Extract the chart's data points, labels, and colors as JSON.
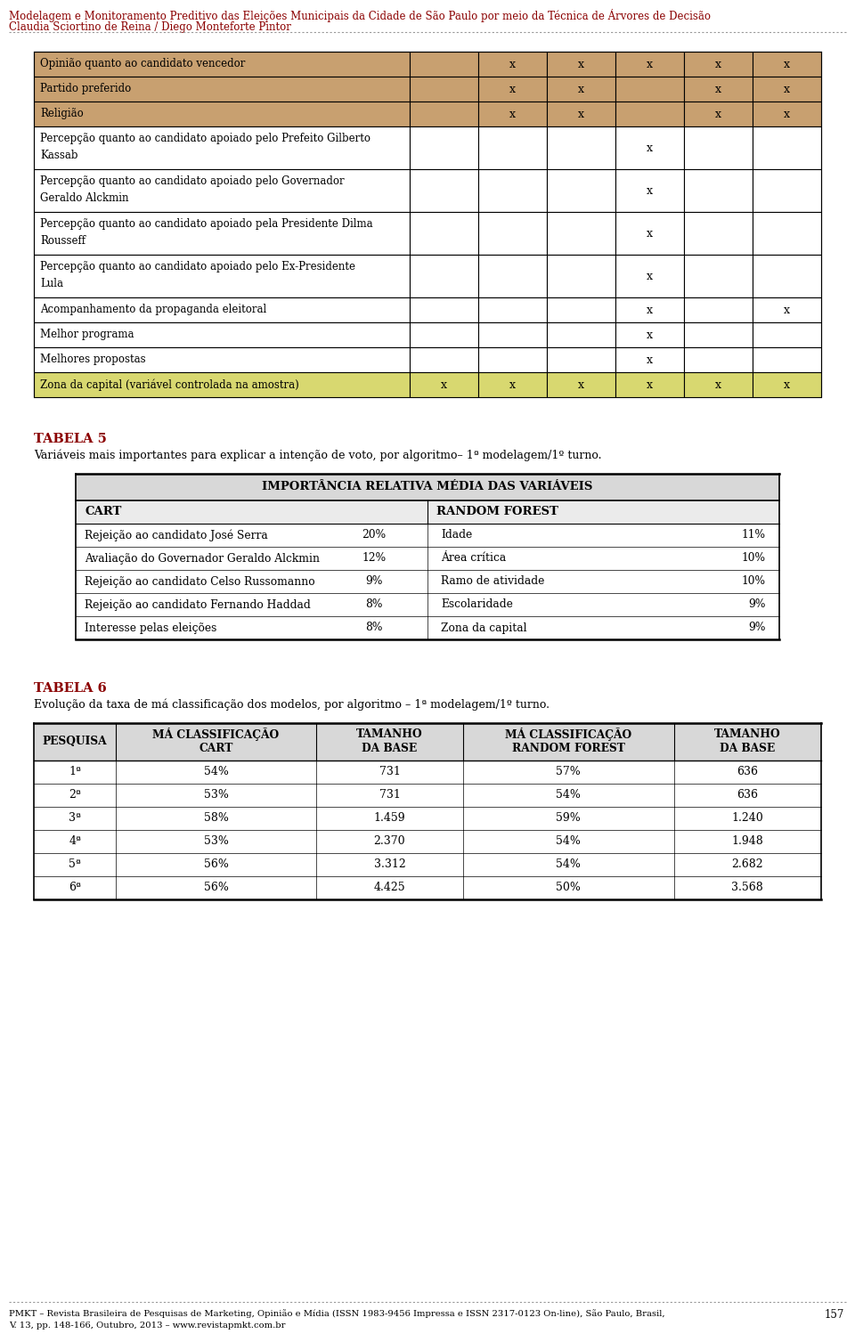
{
  "header_title": "Modelagem e Monitoramento Preditivo das Eleições Municipais da Cidade de São Paulo por meio da Técnica de Árvores de Decisão",
  "header_author": "Claudia Sciortino de Reina / Diego Monteforte Pintor",
  "footer_text": "PMKT – Revista Brasileira de Pesquisas de Marketing, Opinião e Mídia (ISSN 1983-9456 Impressa e ISSN 2317-0123 On-line), São Paulo, Brasil,\nV. 13, pp. 148-166, Outubro, 2013 – www.revistapmkt.com.br",
  "footer_page": "157",
  "table1_rows": [
    {
      "label": "Opinião quanto ao candidato vencedor",
      "cols": [
        false,
        true,
        true,
        true,
        true,
        true
      ],
      "bg": "#C8A070",
      "two_line": false
    },
    {
      "label": "Partido preferido",
      "cols": [
        false,
        true,
        true,
        false,
        true,
        true
      ],
      "bg": "#C8A070",
      "two_line": false
    },
    {
      "label": "Religião",
      "cols": [
        false,
        true,
        true,
        false,
        true,
        true
      ],
      "bg": "#C8A070",
      "two_line": false
    },
    {
      "label": "Percepção quanto ao candidato apoiado pelo Prefeito Gilberto\nKassab",
      "cols": [
        false,
        false,
        false,
        true,
        false,
        false
      ],
      "bg": "#FFFFFF",
      "two_line": true
    },
    {
      "label": "Percepção quanto ao candidato apoiado pelo Governador\nGeraldo Alckmin",
      "cols": [
        false,
        false,
        false,
        true,
        false,
        false
      ],
      "bg": "#FFFFFF",
      "two_line": true
    },
    {
      "label": "Percepção quanto ao candidato apoiado pela Presidente Dilma\nRousseff",
      "cols": [
        false,
        false,
        false,
        true,
        false,
        false
      ],
      "bg": "#FFFFFF",
      "two_line": true
    },
    {
      "label": "Percepção quanto ao candidato apoiado pelo Ex-Presidente\nLula",
      "cols": [
        false,
        false,
        false,
        true,
        false,
        false
      ],
      "bg": "#FFFFFF",
      "two_line": true
    },
    {
      "label": "Acompanhamento da propaganda eleitoral",
      "cols": [
        false,
        false,
        false,
        true,
        false,
        true
      ],
      "bg": "#FFFFFF",
      "two_line": false
    },
    {
      "label": "Melhor programa",
      "cols": [
        false,
        false,
        false,
        true,
        false,
        false
      ],
      "bg": "#FFFFFF",
      "two_line": false
    },
    {
      "label": "Melhores propostas",
      "cols": [
        false,
        false,
        false,
        true,
        false,
        false
      ],
      "bg": "#FFFFFF",
      "two_line": false
    },
    {
      "label": "Zona da capital (variável controlada na amostra)",
      "cols": [
        true,
        true,
        true,
        true,
        true,
        true
      ],
      "bg": "#D8D870",
      "two_line": false
    }
  ],
  "tabela5_title": "TABELA 5",
  "tabela5_subtitle": "Variáveis mais importantes para explicar a intenção de voto, por algoritmo– 1ª modelagem/1º turno.",
  "tabela5_header": "IMPORTÂNCIA RELATIVA MÉDIA DAS VARIÁVEIS",
  "tabela5_subheader_left": "CART",
  "tabela5_subheader_right": "RANDOM FOREST",
  "tabela5_data": [
    {
      "left_var": "Rejeição ao candidato José Serra",
      "left_pct": "20%",
      "right_var": "Idade",
      "right_pct": "11%"
    },
    {
      "left_var": "Avaliação do Governador Geraldo Alckmin",
      "left_pct": "12%",
      "right_var": "Área crítica",
      "right_pct": "10%"
    },
    {
      "left_var": "Rejeição ao candidato Celso Russomanno",
      "left_pct": "9%",
      "right_var": "Ramo de atividade",
      "right_pct": "10%"
    },
    {
      "left_var": "Rejeição ao candidato Fernando Haddad",
      "left_pct": "8%",
      "right_var": "Escolaridade",
      "right_pct": "9%"
    },
    {
      "left_var": "Interesse pelas eleições",
      "left_pct": "8%",
      "right_var": "Zona da capital",
      "right_pct": "9%"
    }
  ],
  "tabela6_title": "TABELA 6",
  "tabela6_subtitle": "Evolução da taxa de má classificação dos modelos, por algoritmo – 1ª modelagem/1º turno.",
  "tabela6_headers": [
    "PESQUISA",
    "MÁ CLASSIFICAÇÃO\nCART",
    "TAMANHO\nDA BASE",
    "MÁ CLASSIFICAÇÃO\nRANDOM FOREST",
    "TAMANHO\nDA BASE"
  ],
  "tabela6_data": [
    [
      "1ª",
      "54%",
      "731",
      "57%",
      "636"
    ],
    [
      "2ª",
      "53%",
      "731",
      "54%",
      "636"
    ],
    [
      "3ª",
      "58%",
      "1.459",
      "59%",
      "1.240"
    ],
    [
      "4ª",
      "53%",
      "2.370",
      "54%",
      "1.948"
    ],
    [
      "5ª",
      "56%",
      "3.312",
      "54%",
      "2.682"
    ],
    [
      "6ª",
      "56%",
      "4.425",
      "50%",
      "3.568"
    ]
  ],
  "dark_red": "#8B0000",
  "tan_color": "#C8A070",
  "yellow_color": "#D8D870"
}
